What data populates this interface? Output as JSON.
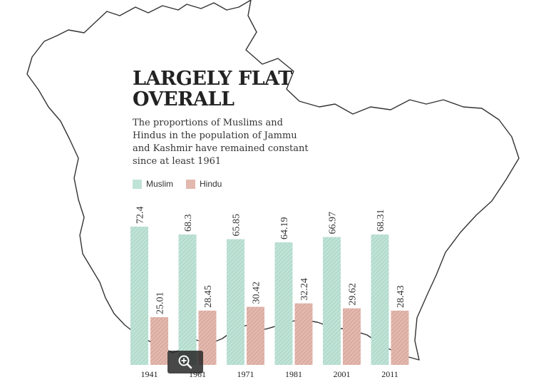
{
  "header": {
    "title": "LARGELY FLAT OVERALL",
    "subtitle": "The proportions of Muslims and Hindus in the population of Jammu and Kashmir have remained constant since at least 1961"
  },
  "legend": {
    "muslim_label": "Muslim",
    "hindu_label": "Hindu"
  },
  "colors": {
    "muslim": "#bfe3d6",
    "muslim_hatch": "#9ccbba",
    "hindu": "#e3b8ae",
    "hindu_hatch": "#c99488",
    "map_line": "#333333"
  },
  "icons": {
    "zoom": "zoom-in-icon"
  },
  "chart_data": {
    "type": "bar",
    "title": "LARGELY FLAT OVERALL",
    "categories": [
      "1941",
      "1961",
      "1971",
      "1981",
      "2001",
      "2011"
    ],
    "series": [
      {
        "name": "Muslim",
        "values": [
          "72.4",
          "68.3",
          "65.85",
          "64.19",
          "66.97",
          "68.31"
        ]
      },
      {
        "name": "Hindu",
        "values": [
          "25.01",
          "28.45",
          "30.42",
          "32.24",
          "29.62",
          "28.43"
        ]
      }
    ],
    "ylim": [
      0,
      72.4
    ],
    "grid": false,
    "legend_position": "top-left"
  }
}
